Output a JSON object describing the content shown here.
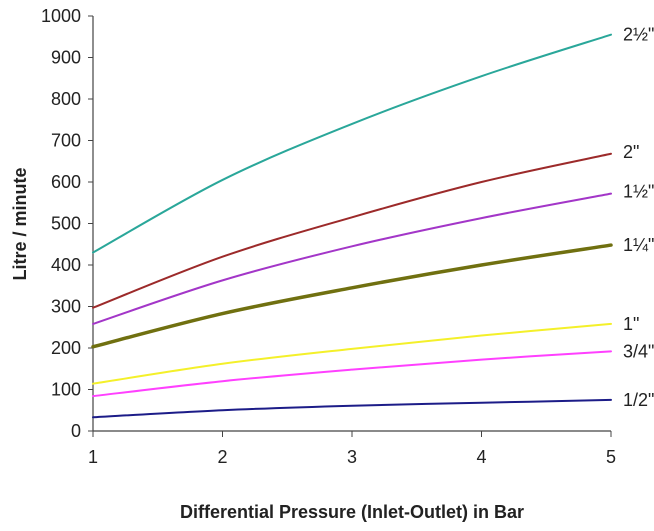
{
  "chart_data": {
    "type": "line",
    "title": "",
    "xlabel": "Differential Pressure (Inlet-Outlet) in Bar",
    "ylabel": "Litre / minute",
    "xlim": [
      1,
      5
    ],
    "ylim": [
      0,
      1000
    ],
    "xticks": [
      "1",
      "2",
      "3",
      "4",
      "5"
    ],
    "yticks": [
      "0",
      "100",
      "200",
      "300",
      "400",
      "500",
      "600",
      "700",
      "800",
      "900",
      "1000"
    ],
    "grid": false,
    "legend": "labels at line ends (right)",
    "x": [
      1,
      2,
      3,
      4,
      5
    ],
    "series": [
      {
        "name": "2½\"",
        "color": "#2aa79a",
        "values": [
          430,
          605,
          740,
          855,
          955
        ]
      },
      {
        "name": "2\"",
        "color": "#9c2a2a",
        "values": [
          297,
          420,
          515,
          600,
          668
        ]
      },
      {
        "name": "1½\"",
        "color": "#a336c8",
        "values": [
          258,
          363,
          445,
          513,
          572
        ]
      },
      {
        "name": "1¼\"",
        "color": "#707010",
        "values": [
          203,
          283,
          345,
          400,
          448
        ]
      },
      {
        "name": "1\"",
        "color": "#f4f02a",
        "values": [
          114,
          162,
          198,
          230,
          258
        ]
      },
      {
        "name": "3/4\"",
        "color": "#ff40ff",
        "values": [
          84,
          120,
          148,
          172,
          192
        ]
      },
      {
        "name": "1/2\"",
        "color": "#1c1c88",
        "values": [
          33,
          50,
          61,
          68,
          75
        ]
      }
    ]
  }
}
